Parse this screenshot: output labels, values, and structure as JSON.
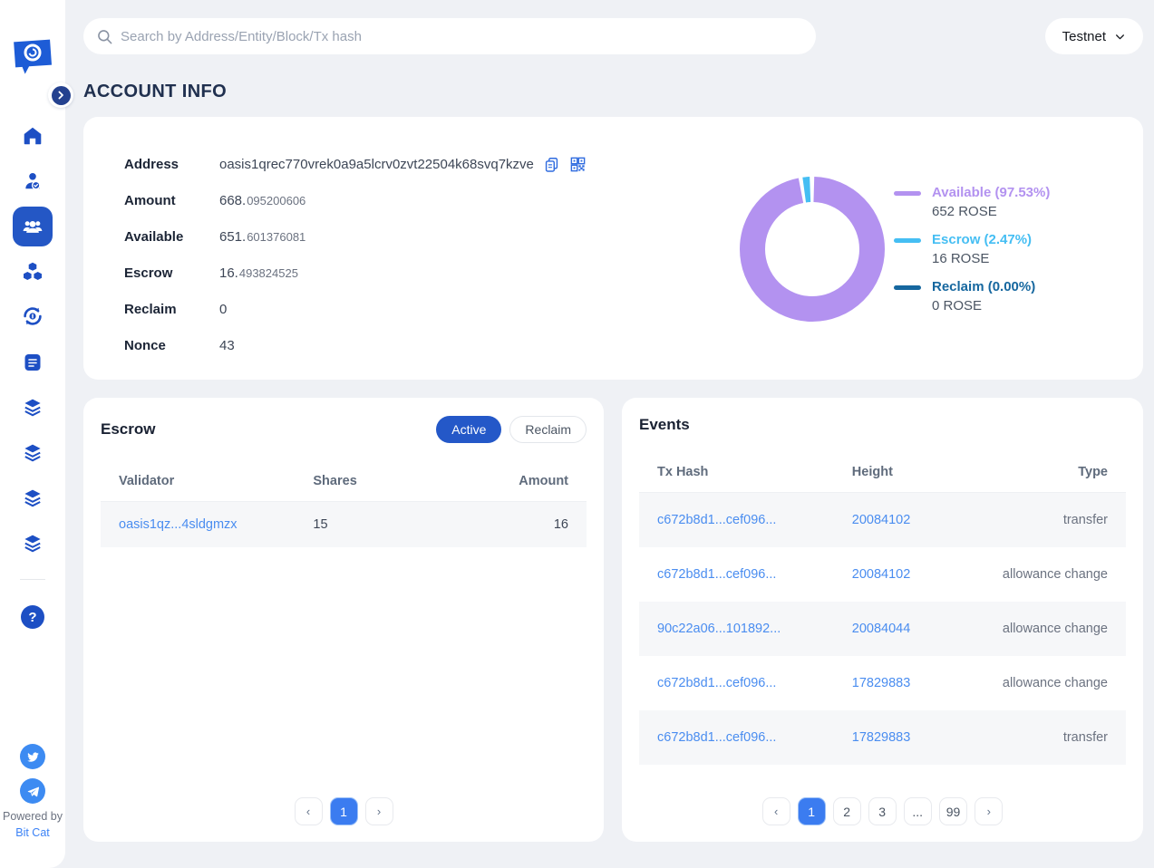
{
  "header": {
    "search_placeholder": "Search by Address/Entity/Block/Tx hash",
    "network": "Testnet"
  },
  "sidebar": {
    "icons": [
      "logo",
      "collapse-chevron",
      "home",
      "validators",
      "accounts",
      "blocks",
      "transactions",
      "documents",
      "layers-1",
      "layers-2",
      "layers-3",
      "layers-4",
      "help",
      "twitter",
      "telegram"
    ],
    "active_item": "accounts",
    "powered_by": "Powered by",
    "brand": "Bit Cat"
  },
  "page_title": "ACCOUNT INFO",
  "account": {
    "address_label": "Address",
    "address": "oasis1qrec770vrek0a9a5lcrv0zvt22504k68svq7kzve",
    "rows": [
      {
        "label": "Amount",
        "int": "668.",
        "dec": "095200606"
      },
      {
        "label": "Available",
        "int": "651.",
        "dec": "601376081"
      },
      {
        "label": "Escrow",
        "int": "16.",
        "dec": "493824525"
      },
      {
        "label": "Reclaim",
        "int": "0",
        "dec": ""
      },
      {
        "label": "Nonce",
        "int": "43",
        "dec": ""
      }
    ]
  },
  "chart_data": {
    "type": "pie",
    "donut": true,
    "legend_position": "right",
    "unit": "ROSE",
    "slices": [
      {
        "label": "Available",
        "pct": 97.53,
        "display": "Available (97.53%)",
        "amount": "652 ROSE",
        "color": "#b392f0"
      },
      {
        "label": "Escrow",
        "pct": 2.47,
        "display": "Escrow (2.47%)",
        "amount": "16 ROSE",
        "color": "#45bef3"
      },
      {
        "label": "Reclaim",
        "pct": 0.0,
        "display": "Reclaim (0.00%)",
        "amount": "0 ROSE",
        "color": "#16679f"
      }
    ]
  },
  "escrow_panel": {
    "title": "Escrow",
    "tabs": {
      "active": "Active",
      "reclaim": "Reclaim"
    },
    "columns": {
      "validator": "Validator",
      "shares": "Shares",
      "amount": "Amount"
    },
    "rows": [
      {
        "validator": "oasis1qz...4sldgmzx",
        "shares": "15",
        "amount": "16"
      }
    ],
    "pagination": {
      "active_page": "1"
    }
  },
  "events_panel": {
    "title": "Events",
    "columns": {
      "tx": "Tx Hash",
      "height": "Height",
      "type": "Type"
    },
    "rows": [
      {
        "tx": "c672b8d1...cef096...",
        "height": "20084102",
        "type": "transfer"
      },
      {
        "tx": "c672b8d1...cef096...",
        "height": "20084102",
        "type": "allowance change"
      },
      {
        "tx": "90c22a06...101892...",
        "height": "20084044",
        "type": "allowance change"
      },
      {
        "tx": "c672b8d1...cef096...",
        "height": "17829883",
        "type": "allowance change"
      },
      {
        "tx": "c672b8d1...cef096...",
        "height": "17829883",
        "type": "transfer"
      }
    ],
    "pagination": {
      "items": [
        "1",
        "2",
        "3",
        "...",
        "99"
      ],
      "active_page": "1"
    }
  },
  "colors": {
    "primary": "#2458c8",
    "link": "#4a8df0",
    "pagination_active": "#3b7cf0",
    "available": "#b392f0",
    "escrow": "#45bef3",
    "reclaim": "#16679f",
    "page_bg": "#eff1f5"
  }
}
